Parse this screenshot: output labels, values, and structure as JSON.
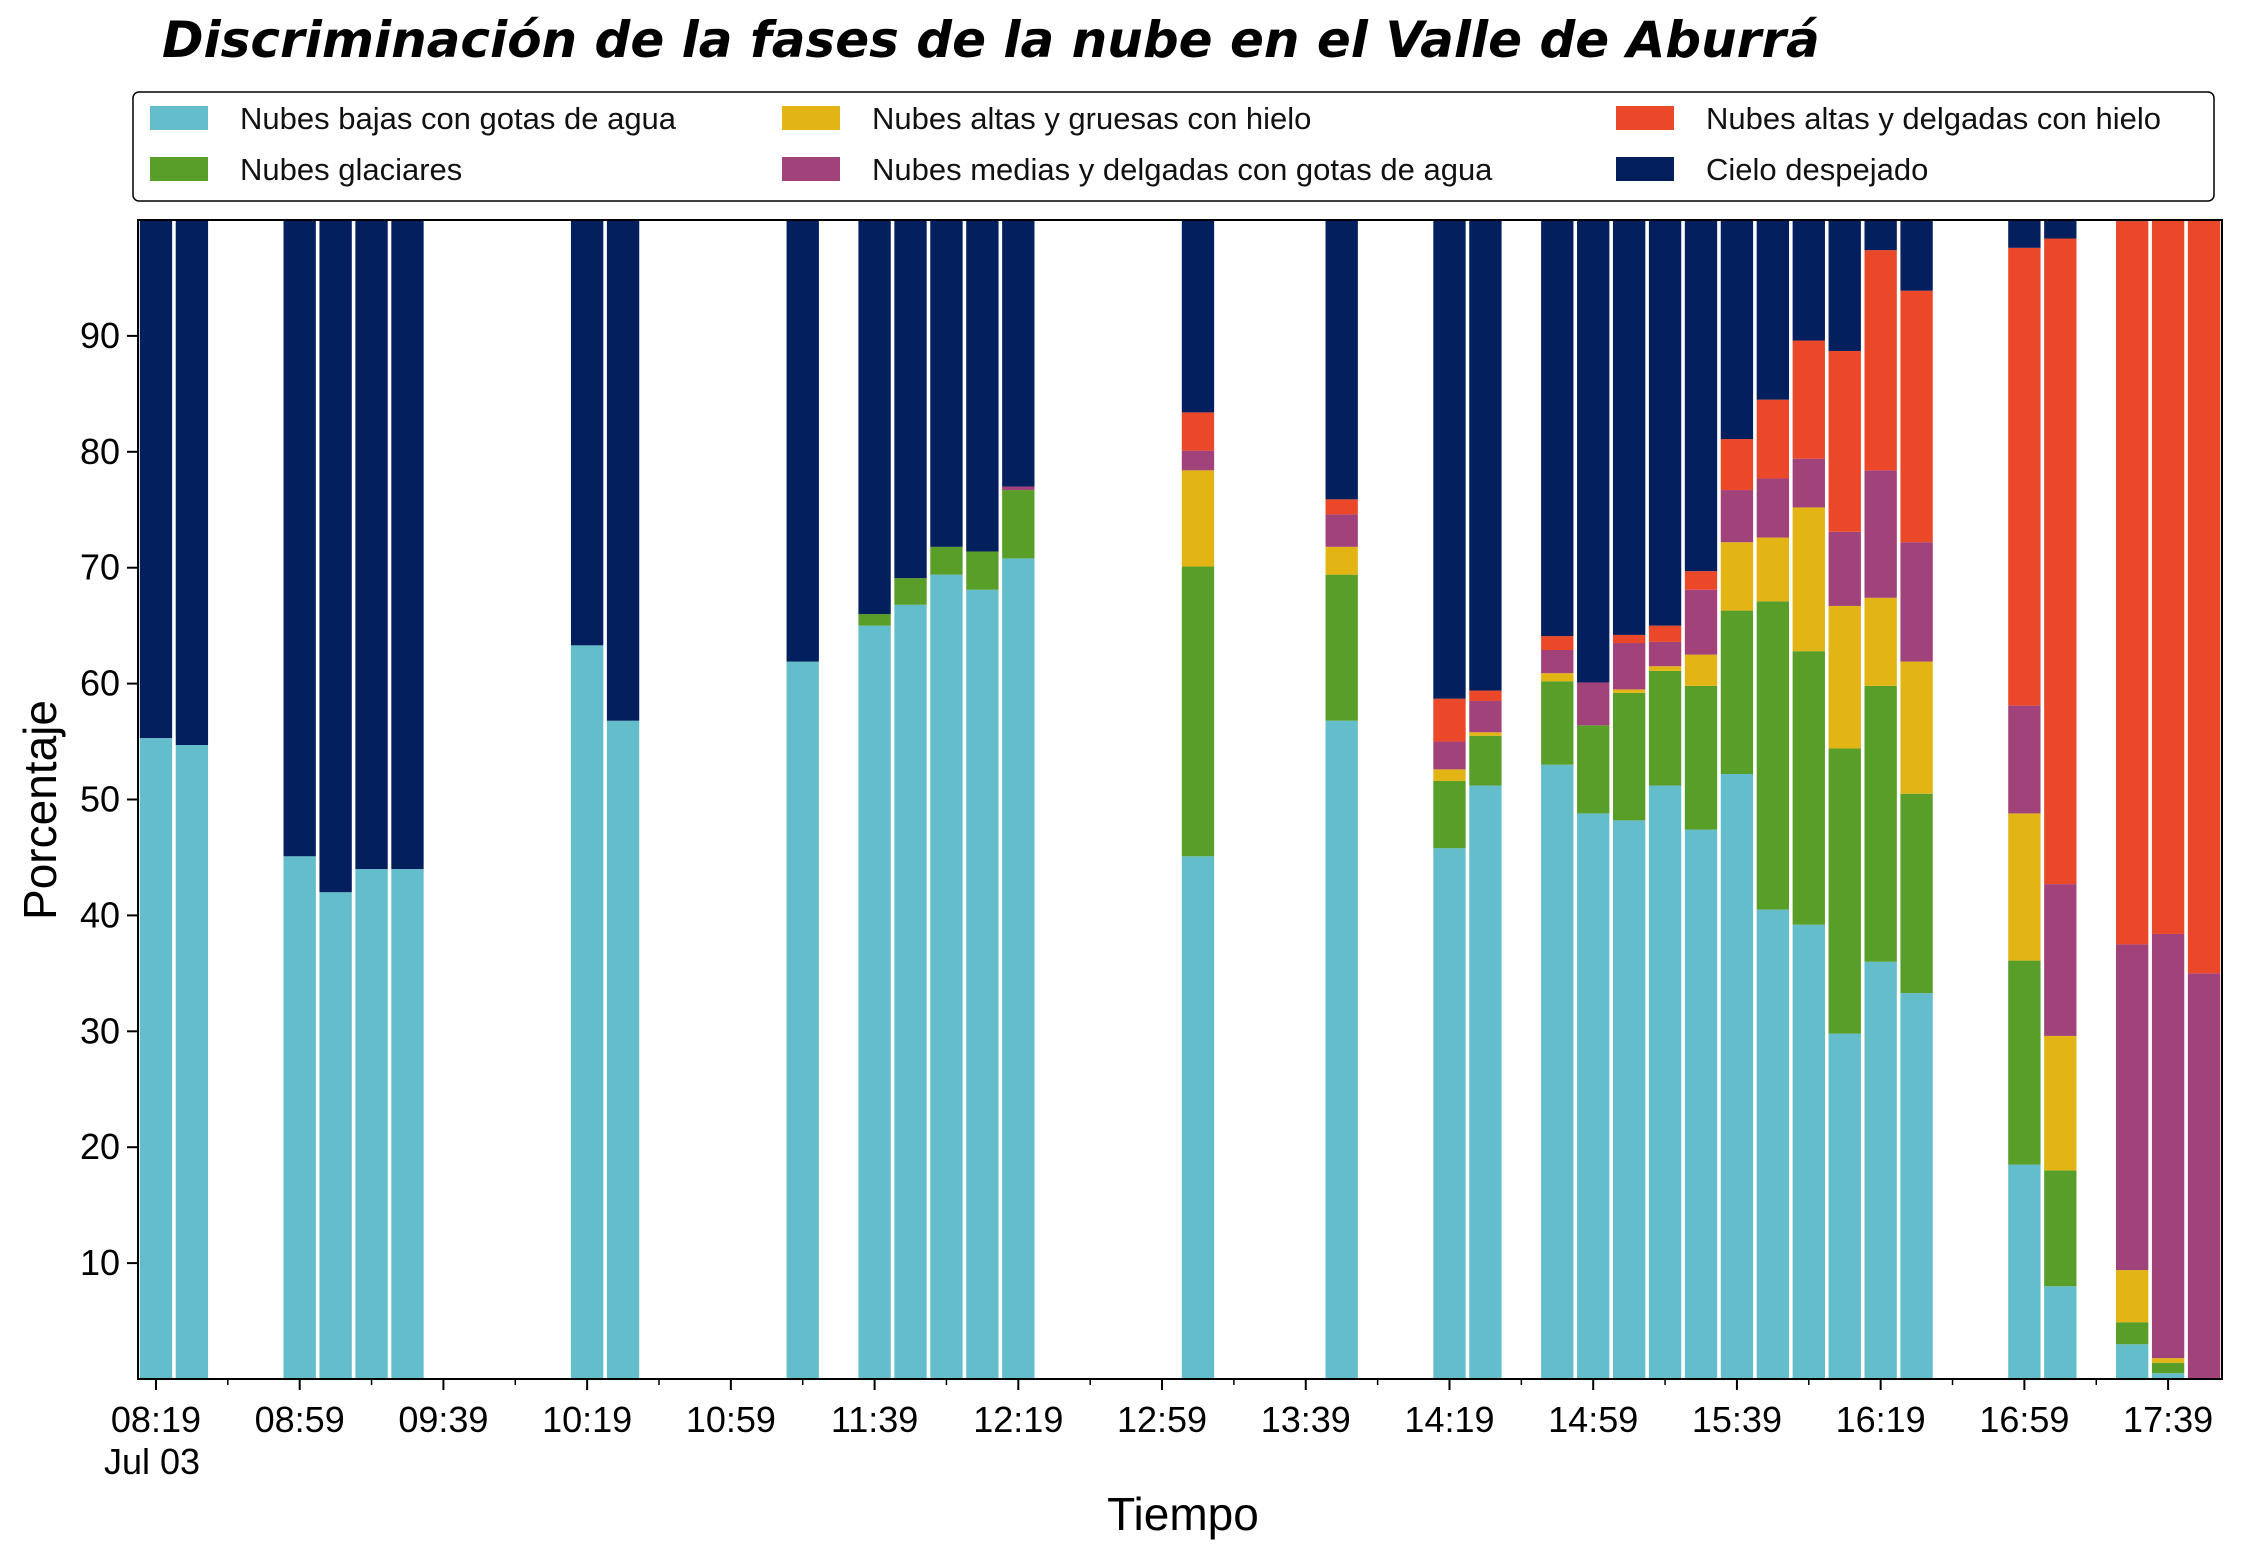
{
  "chart_data": {
    "type": "bar",
    "stacked": true,
    "title": "Discriminación de la fases de la nube en el Valle de Aburrá",
    "xlabel": "Tiempo",
    "ylabel": "Porcentaje",
    "ylim": [
      0,
      100
    ],
    "yticks": [
      10,
      20,
      30,
      40,
      50,
      60,
      70,
      80,
      90
    ],
    "x_range": [
      "08:14",
      "17:54"
    ],
    "x_major_ticks": [
      "08:19",
      "08:59",
      "09:39",
      "10:19",
      "10:59",
      "11:39",
      "12:19",
      "12:59",
      "13:39",
      "14:19",
      "14:59",
      "15:39",
      "16:19",
      "16:59",
      "17:39"
    ],
    "x_date_label": "Jul 03",
    "legend_position": "top",
    "grid": false,
    "times": [
      "08:19",
      "08:29",
      "08:59",
      "09:09",
      "09:19",
      "09:29",
      "10:19",
      "10:29",
      "11:19",
      "11:39",
      "11:49",
      "11:59",
      "12:09",
      "12:19",
      "13:09",
      "13:49",
      "14:19",
      "14:29",
      "14:49",
      "14:59",
      "15:09",
      "15:19",
      "15:29",
      "15:39",
      "15:49",
      "15:59",
      "16:09",
      "16:19",
      "16:29",
      "16:59",
      "17:09",
      "17:29",
      "17:39",
      "17:49"
    ],
    "series": [
      {
        "name": "Nubes bajas con gotas de agua",
        "color": "#63bdca",
        "values": [
          55.3,
          54.7,
          45.1,
          42.0,
          44.0,
          44.0,
          63.3,
          56.8,
          61.9,
          65.0,
          66.8,
          69.4,
          68.1,
          70.8,
          45.1,
          56.8,
          45.8,
          51.2,
          53.0,
          48.8,
          48.2,
          51.2,
          47.4,
          52.2,
          40.5,
          39.2,
          29.8,
          36.0,
          33.3,
          18.5,
          8.0,
          3.0,
          0.5,
          0.0
        ]
      },
      {
        "name": "Nubes glaciares",
        "color": "#5a9e2a",
        "values": [
          0,
          0,
          0,
          0,
          0,
          0,
          0,
          0,
          0,
          1.0,
          2.3,
          2.4,
          3.3,
          5.9,
          25.0,
          12.6,
          5.8,
          4.3,
          7.2,
          7.6,
          11.0,
          9.9,
          12.4,
          14.1,
          26.6,
          23.6,
          24.6,
          23.8,
          17.2,
          17.6,
          10.0,
          1.9,
          0.9,
          0.0
        ]
      },
      {
        "name": "Nubes altas y gruesas con hielo",
        "color": "#e2b514",
        "values": [
          0,
          0,
          0,
          0,
          0,
          0,
          0,
          0,
          0,
          0,
          0,
          0,
          0,
          0,
          8.3,
          2.4,
          1.0,
          0.3,
          0.7,
          0.0,
          0.3,
          0.4,
          2.7,
          5.9,
          5.5,
          12.4,
          12.3,
          7.6,
          11.4,
          12.7,
          11.6,
          4.5,
          0.4,
          0.0
        ]
      },
      {
        "name": "Nubes medias y delgadas con gotas de agua",
        "color": "#a2427a",
        "values": [
          0,
          0,
          0,
          0,
          0,
          0,
          0,
          0,
          0,
          0,
          0,
          0,
          0,
          0.3,
          1.7,
          2.8,
          2.4,
          2.7,
          2.0,
          3.7,
          4.0,
          2.1,
          5.6,
          4.5,
          5.1,
          4.2,
          6.4,
          11.0,
          10.3,
          9.3,
          13.1,
          28.1,
          36.6,
          35.0
        ]
      },
      {
        "name": "Nubes altas y delgadas con hielo",
        "color": "#eb4829",
        "values": [
          0,
          0,
          0,
          0,
          0,
          0,
          0,
          0,
          0,
          0,
          0,
          0,
          0,
          0,
          3.3,
          1.3,
          3.7,
          0.9,
          1.2,
          0.0,
          0.7,
          1.4,
          1.6,
          4.4,
          6.8,
          10.2,
          15.6,
          19.0,
          21.7,
          39.5,
          55.7,
          62.4,
          61.6,
          65.0
        ]
      },
      {
        "name": "Cielo despejado",
        "color": "#041f5d",
        "values": [
          44.7,
          45.3,
          54.9,
          58.0,
          56.0,
          56.0,
          36.7,
          43.2,
          38.1,
          34.0,
          30.9,
          28.2,
          28.6,
          23.0,
          16.6,
          24.1,
          41.3,
          40.6,
          35.9,
          39.9,
          35.8,
          35.0,
          30.3,
          18.9,
          15.5,
          10.4,
          11.3,
          2.6,
          6.1,
          2.4,
          1.6,
          0.1,
          0.0,
          0.0
        ]
      }
    ]
  }
}
